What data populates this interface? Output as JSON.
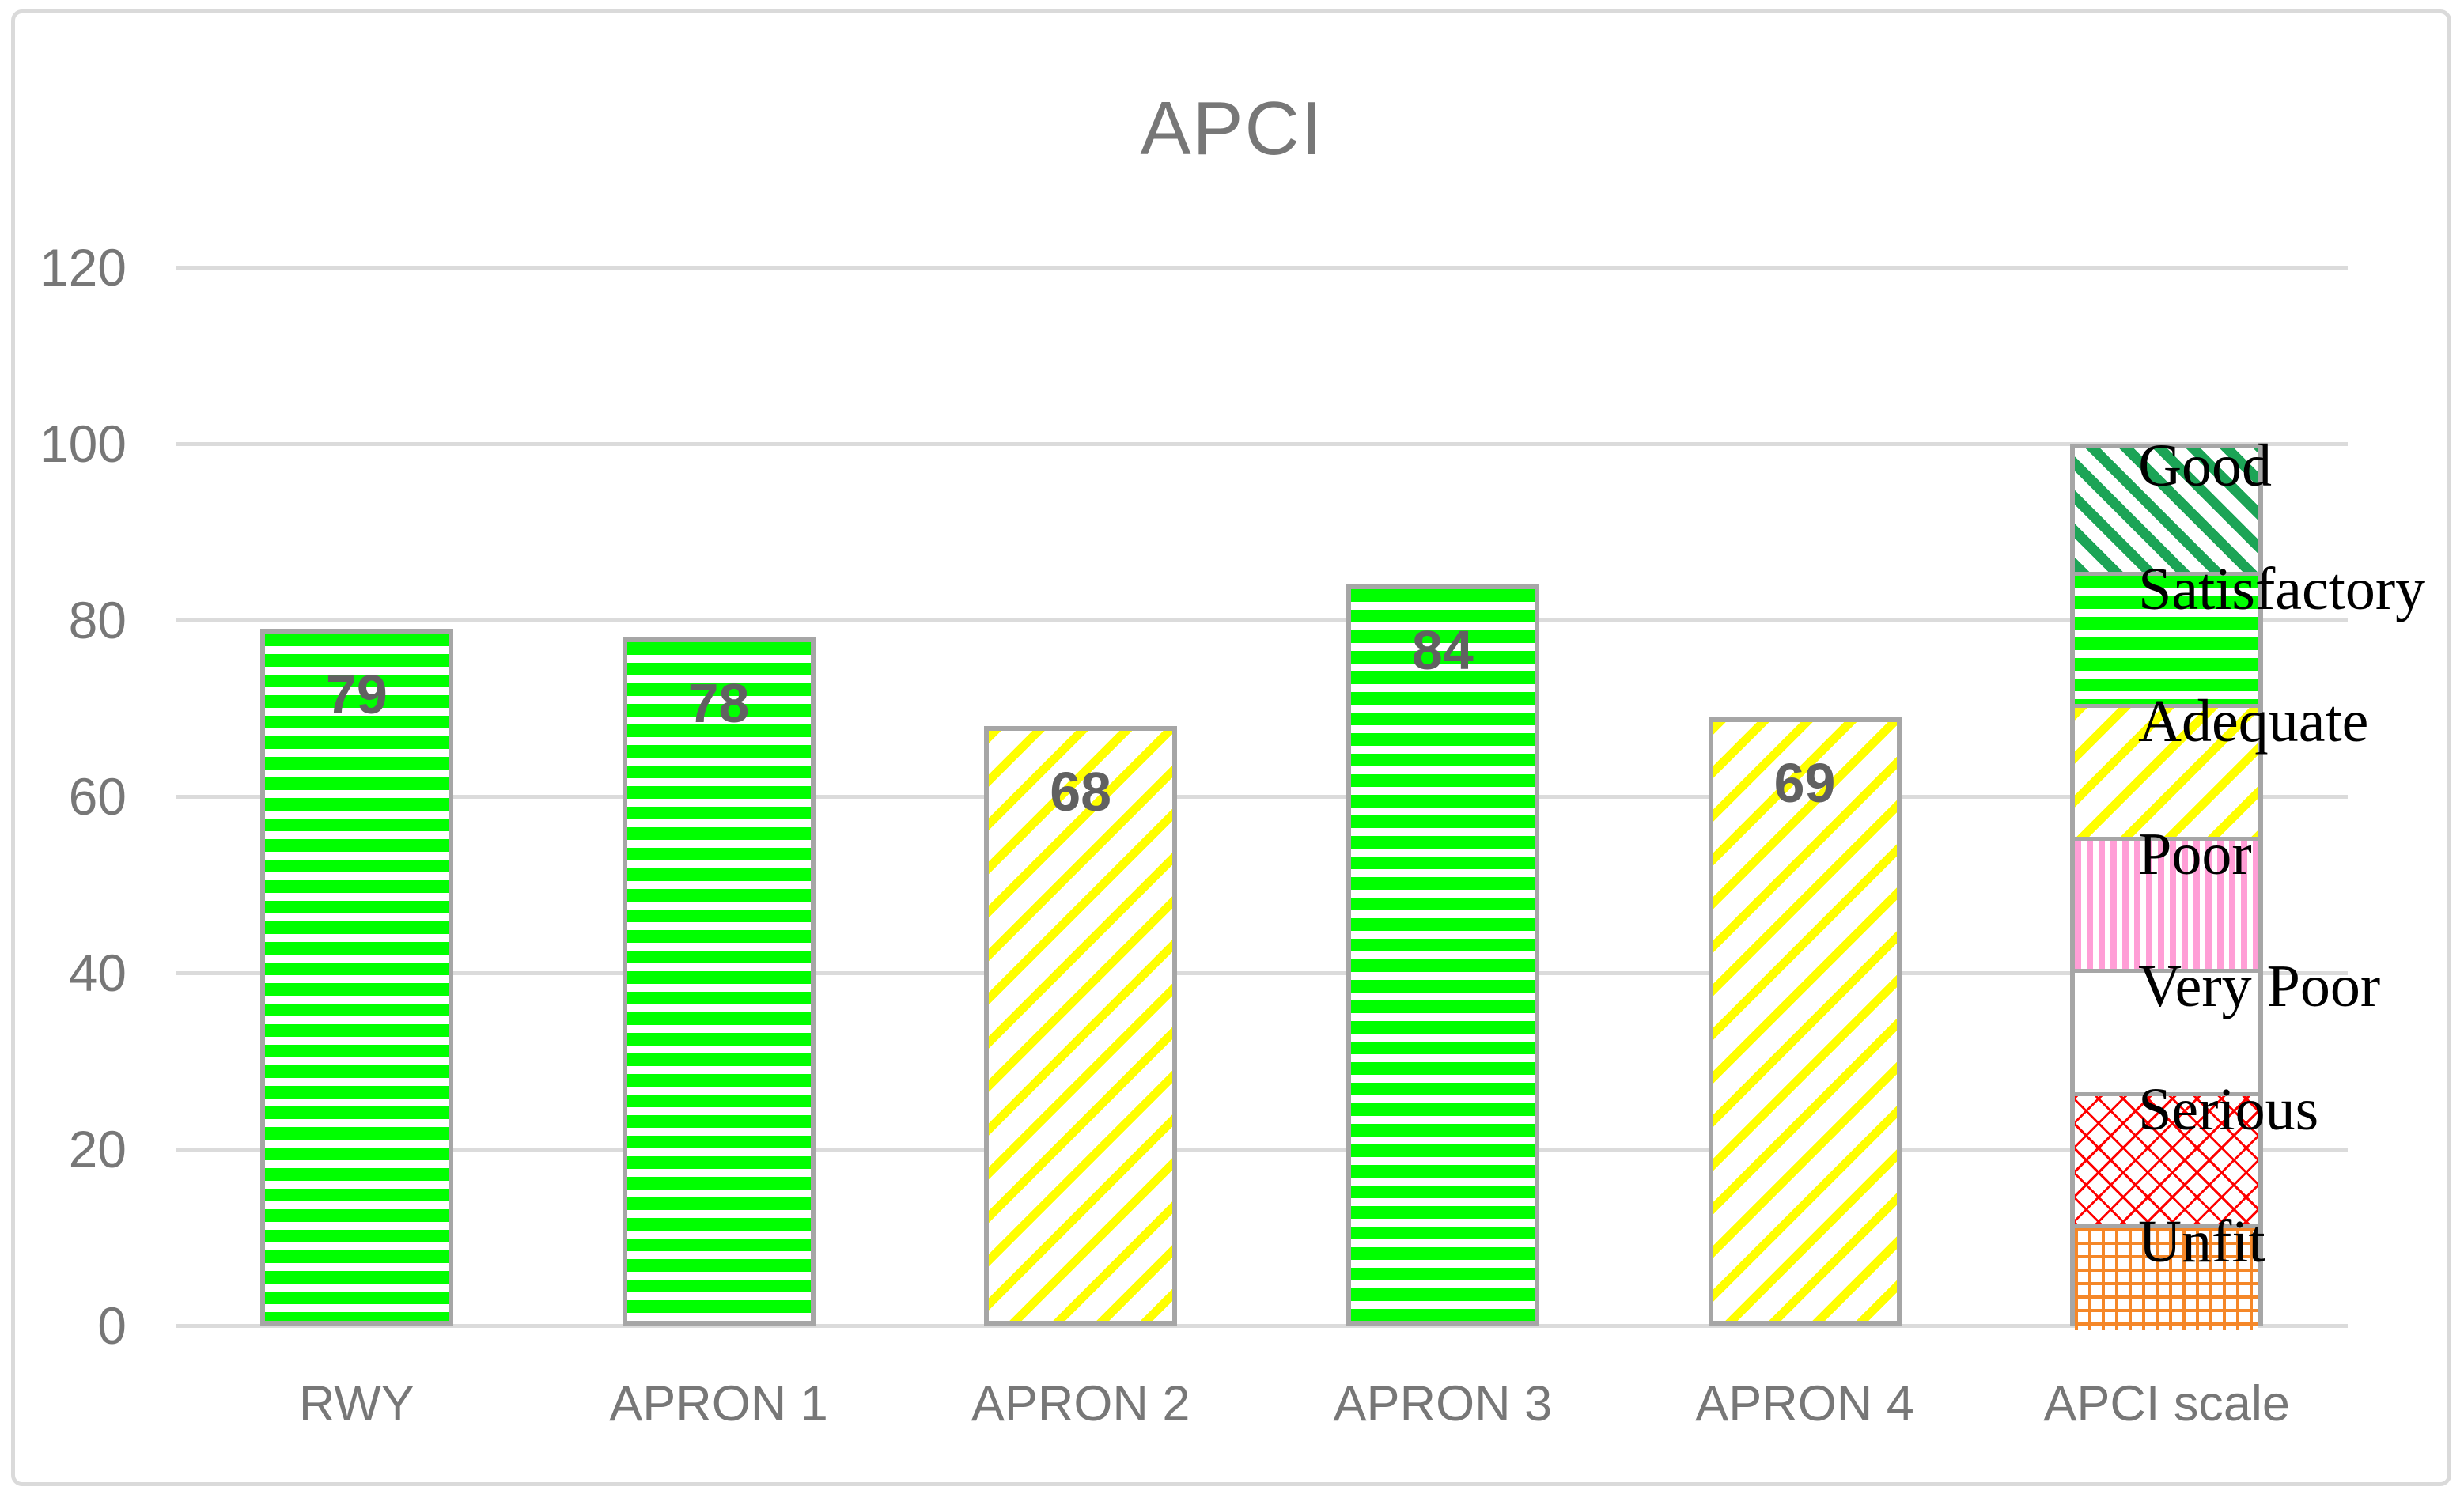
{
  "title": "APCI",
  "colors": {
    "bright_green": "#00FF00",
    "dark_green": "#1CA456",
    "yellow": "#FFFF00",
    "pink": "#FF9ED6",
    "red": "#FF0000",
    "orange": "#F58728",
    "bar_border": "#A6A6A6",
    "gridline": "#DBDBDB",
    "frame_border": "#DADADA",
    "axis_text": "#777777",
    "value_label": "#616161",
    "scale_label": "#000000"
  },
  "chart_data": {
    "type": "bar",
    "title": "APCI",
    "categories": [
      "RWY",
      "APRON 1",
      "APRON 2",
      "APRON 3",
      "APRON 4",
      "APCI scale"
    ],
    "series": [
      {
        "name": "APCI",
        "values": [
          79,
          78,
          68,
          84,
          69,
          null
        ]
      }
    ],
    "bars": [
      {
        "category": "RWY",
        "value": 79,
        "pattern": "green-horizontal"
      },
      {
        "category": "APRON 1",
        "value": 78,
        "pattern": "green-horizontal"
      },
      {
        "category": "APRON 2",
        "value": 68,
        "pattern": "yellow-diagonal"
      },
      {
        "category": "APRON 3",
        "value": 84,
        "pattern": "green-horizontal"
      },
      {
        "category": "APRON 4",
        "value": 69,
        "pattern": "yellow-diagonal"
      }
    ],
    "scale_bar": {
      "category": "APCI scale",
      "total": 100,
      "segments_bottom_to_top": [
        {
          "label": "Unfit",
          "from": 0,
          "to": 12,
          "pattern": "orange-grid"
        },
        {
          "label": "Serious",
          "from": 12,
          "to": 27,
          "pattern": "red-brick"
        },
        {
          "label": "Very Poor",
          "from": 27,
          "to": 41,
          "pattern": "plain"
        },
        {
          "label": "Poor",
          "from": 41,
          "to": 56,
          "pattern": "pink-vertical"
        },
        {
          "label": "Adequate",
          "from": 56,
          "to": 71,
          "pattern": "yellow-diagonal"
        },
        {
          "label": "Satisfactory",
          "from": 71,
          "to": 86,
          "pattern": "green-horizontal"
        },
        {
          "label": "Good",
          "from": 86,
          "to": 100,
          "pattern": "green-diagonal"
        }
      ]
    },
    "ylim": [
      0,
      120
    ],
    "yticks": [
      0,
      20,
      40,
      60,
      80,
      100,
      120
    ],
    "grid": true,
    "legend_position": "none"
  }
}
